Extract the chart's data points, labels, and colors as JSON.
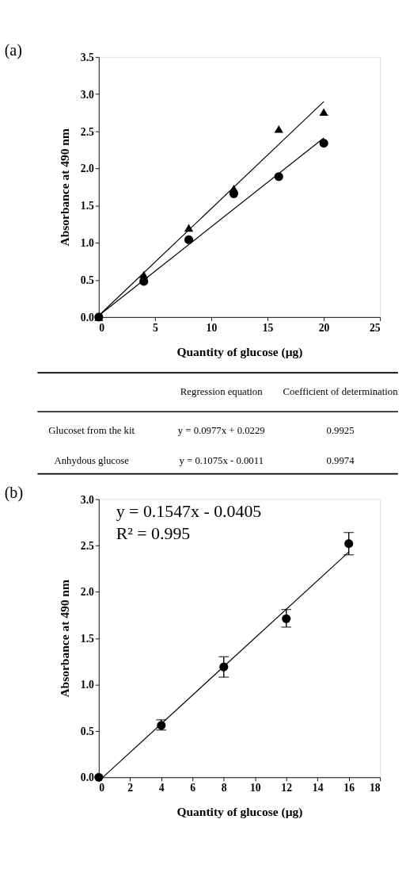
{
  "chart_data": [
    {
      "type": "scatter",
      "title": "(a)",
      "xlabel": "Quantity of glucose (µg)",
      "ylabel": "Absorbance at 490 nm",
      "x": [
        0,
        4,
        8,
        12,
        16,
        20
      ],
      "xlim": [
        0,
        25
      ],
      "xticks": [
        0,
        5,
        10,
        15,
        20,
        25
      ],
      "ylim": [
        0,
        3.5
      ],
      "yticks": [
        {
          "value": 0,
          "label": "0.0"
        },
        {
          "value": 0.5,
          "label": "0.5"
        },
        {
          "value": 1,
          "label": "1.0"
        },
        {
          "value": 1.5,
          "label": "1.5"
        },
        {
          "value": 2,
          "label": "2.0"
        },
        {
          "value": 2.5,
          "label": "2.5"
        },
        {
          "value": 3,
          "label": "3.0"
        },
        {
          "value": 3.5,
          "label": "3.5"
        }
      ],
      "grid": false,
      "legend": false,
      "series": [
        {
          "type": "scatter",
          "marker": "circle",
          "color": "#000000",
          "values": [
            0,
            0.48,
            1.04,
            1.66,
            1.89,
            2.34
          ]
        },
        {
          "type": "scatter",
          "marker": "triangle",
          "color": "#000000",
          "values": [
            0,
            0.57,
            1.2,
            1.73,
            2.53,
            2.76
          ]
        },
        {
          "type": "line",
          "marker": "none",
          "color": "#000000",
          "x": [
            0,
            20
          ],
          "values": [
            0.02,
            2.9
          ]
        },
        {
          "type": "line",
          "marker": "none",
          "color": "#000000",
          "x": [
            0,
            20
          ],
          "values": [
            0.02,
            2.41
          ]
        }
      ]
    },
    {
      "type": "other",
      "annotations": [
        "Regression equation",
        "Coefficient of determination",
        "Glucoset from the kit",
        "y = 0.0977x + 0.0229",
        "0.9925",
        "Anhydous glucose",
        "y = 0.1075x - 0.0011",
        "0.9974"
      ]
    },
    {
      "type": "scatter",
      "title": "(b)",
      "xlabel": "Quantity of glucose (µg)",
      "ylabel": "Absorbance at 490 nm",
      "x": [
        0,
        4,
        8,
        12,
        16
      ],
      "xlim": [
        0,
        18
      ],
      "xticks": [
        0,
        2,
        4,
        6,
        8,
        10,
        12,
        14,
        16,
        18
      ],
      "ylim": [
        0,
        3
      ],
      "yticks": [
        {
          "value": 0,
          "label": "0.0"
        },
        {
          "value": 0.5,
          "label": "0.5"
        },
        {
          "value": 1,
          "label": "1.0"
        },
        {
          "value": 1.5,
          "label": "1.5"
        },
        {
          "value": 2,
          "label": "2.0"
        },
        {
          "value": 2.5,
          "label": "2.5"
        },
        {
          "value": 3,
          "label": "3.0"
        }
      ],
      "grid": false,
      "legend": false,
      "annotations": [
        "y = 0.1547x - 0.0405",
        "R² = 0.995"
      ],
      "series": [
        {
          "type": "scatter",
          "marker": "circle",
          "color": "#000000",
          "values": [
            0,
            0.56,
            1.19,
            1.71,
            2.52
          ],
          "errors": [
            null,
            [
              0.51,
              0.62
            ],
            [
              1.08,
              1.3
            ],
            [
              1.62,
              1.81
            ],
            [
              2.4,
              2.64
            ]
          ]
        },
        {
          "type": "line",
          "marker": "none",
          "color": "#000000",
          "x": [
            0.26,
            16
          ],
          "values": [
            0,
            2.43
          ]
        }
      ]
    }
  ]
}
